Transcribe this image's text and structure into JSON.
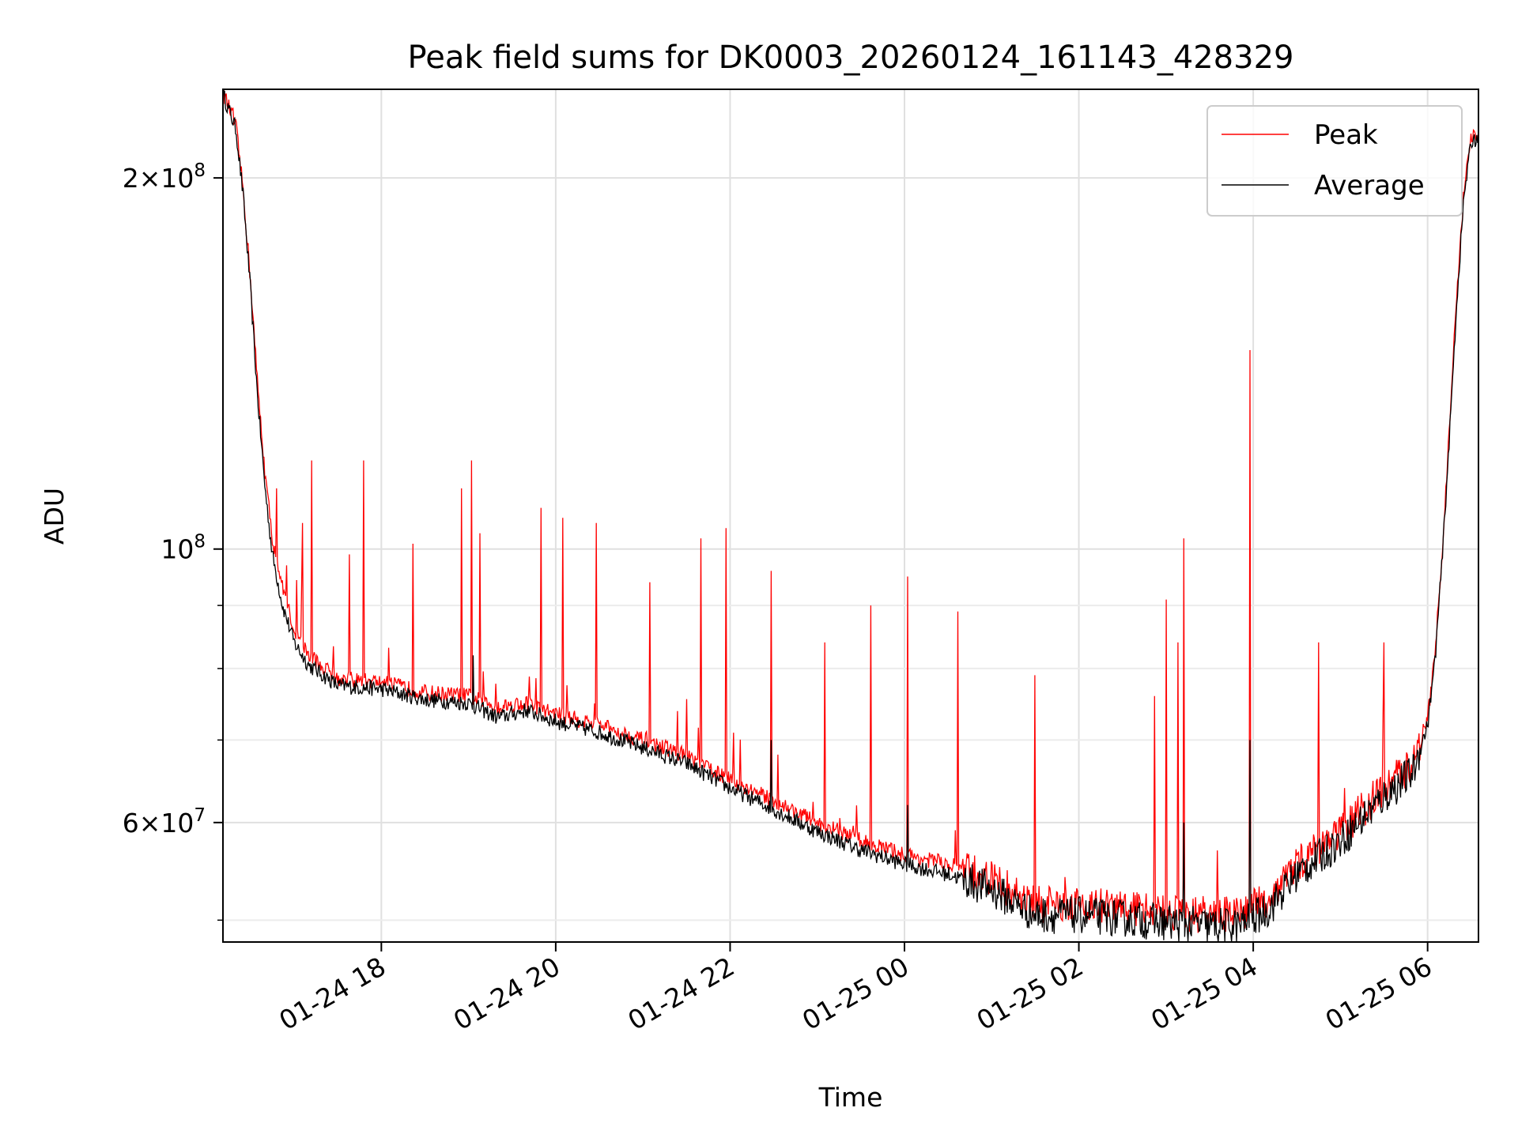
{
  "chart_data": {
    "type": "line",
    "title": "Peak field sums for DK0003_20260124_161143_428329",
    "xlabel": "Time",
    "ylabel": "ADU",
    "xlim": [
      "2026-01-24 16:11",
      "2026-01-25 06:35"
    ],
    "ylim": [
      48000000,
      236000000
    ],
    "yscale": "log",
    "grid": true,
    "legend_position": "top-right",
    "x_ticks": [
      {
        "t": "2026-01-24 18:00",
        "label": "01-24 18"
      },
      {
        "t": "2026-01-24 20:00",
        "label": "01-24 20"
      },
      {
        "t": "2026-01-24 22:00",
        "label": "01-24 22"
      },
      {
        "t": "2026-01-25 00:00",
        "label": "01-25 00"
      },
      {
        "t": "2026-01-25 02:00",
        "label": "01-25 02"
      },
      {
        "t": "2026-01-25 04:00",
        "label": "01-25 04"
      },
      {
        "t": "2026-01-25 06:00",
        "label": "01-25 06"
      }
    ],
    "y_major_ticks": [
      {
        "value": 60000000,
        "base": "6",
        "exp": "7"
      },
      {
        "value": 100000000,
        "base": "10",
        "exp": "8"
      },
      {
        "value": 200000000,
        "base": "2",
        "exp": "8"
      }
    ],
    "y_minor_ticks": [
      50000000,
      70000000,
      80000000,
      90000000
    ],
    "series": [
      {
        "name": "Peak",
        "color": "#ff0000",
        "baseline": [
          [
            "2026-01-24 16:11",
            235000000
          ],
          [
            "2026-01-24 16:20",
            220000000
          ],
          [
            "2026-01-24 16:25",
            195000000
          ],
          [
            "2026-01-24 16:30",
            165000000
          ],
          [
            "2026-01-24 16:35",
            135000000
          ],
          [
            "2026-01-24 16:40",
            115000000
          ],
          [
            "2026-01-24 16:45",
            102000000
          ],
          [
            "2026-01-24 16:52",
            93000000
          ],
          [
            "2026-01-24 17:00",
            86000000
          ],
          [
            "2026-01-24 17:10",
            82000000
          ],
          [
            "2026-01-24 17:30",
            78500000
          ],
          [
            "2026-01-24 18:00",
            78000000
          ],
          [
            "2026-01-24 18:30",
            76500000
          ],
          [
            "2026-01-24 19:00",
            76000000
          ],
          [
            "2026-01-24 19:20",
            74500000
          ],
          [
            "2026-01-24 19:40",
            75000000
          ],
          [
            "2026-01-24 20:00",
            73500000
          ],
          [
            "2026-01-24 20:30",
            72000000
          ],
          [
            "2026-01-24 21:00",
            70000000
          ],
          [
            "2026-01-24 21:30",
            68000000
          ],
          [
            "2026-01-24 22:00",
            65000000
          ],
          [
            "2026-01-24 22:30",
            62500000
          ],
          [
            "2026-01-24 23:00",
            60000000
          ],
          [
            "2026-01-24 23:30",
            58000000
          ],
          [
            "2026-01-25 00:00",
            56500000
          ],
          [
            "2026-01-25 00:30",
            55500000
          ],
          [
            "2026-01-25 01:00",
            54000000
          ],
          [
            "2026-01-25 01:30",
            51500000
          ],
          [
            "2026-01-25 02:00",
            51500000
          ],
          [
            "2026-01-25 02:30",
            51200000
          ],
          [
            "2026-01-25 03:00",
            50800000
          ],
          [
            "2026-01-25 03:30",
            50500000
          ],
          [
            "2026-01-25 03:50",
            50500000
          ],
          [
            "2026-01-25 04:10",
            52000000
          ],
          [
            "2026-01-25 04:30",
            55500000
          ],
          [
            "2026-01-25 05:00",
            59000000
          ],
          [
            "2026-01-25 05:30",
            64000000
          ],
          [
            "2026-01-25 05:50",
            67000000
          ],
          [
            "2026-01-25 06:00",
            73000000
          ],
          [
            "2026-01-25 06:05",
            82000000
          ],
          [
            "2026-01-25 06:10",
            100000000
          ],
          [
            "2026-01-25 06:15",
            125000000
          ],
          [
            "2026-01-25 06:20",
            160000000
          ],
          [
            "2026-01-25 06:25",
            195000000
          ],
          [
            "2026-01-25 06:30",
            215000000
          ],
          [
            "2026-01-25 06:35",
            217000000
          ]
        ],
        "spikes": [
          [
            "2026-01-24 16:18",
            228000000
          ],
          [
            "2026-01-24 16:48",
            112000000
          ],
          [
            "2026-01-24 16:55",
            97000000
          ],
          [
            "2026-01-24 17:06",
            105000000
          ],
          [
            "2026-01-24 17:12",
            118000000
          ],
          [
            "2026-01-24 17:38",
            99000000
          ],
          [
            "2026-01-24 17:48",
            118000000
          ],
          [
            "2026-01-24 18:22",
            101000000
          ],
          [
            "2026-01-24 18:55",
            112000000
          ],
          [
            "2026-01-24 19:02",
            118000000
          ],
          [
            "2026-01-24 19:08",
            103000000
          ],
          [
            "2026-01-24 19:50",
            108000000
          ],
          [
            "2026-01-24 20:05",
            106000000
          ],
          [
            "2026-01-24 20:28",
            105000000
          ],
          [
            "2026-01-24 21:05",
            94000000
          ],
          [
            "2026-01-24 21:40",
            102000000
          ],
          [
            "2026-01-24 21:57",
            104000000
          ],
          [
            "2026-01-24 22:28",
            96000000
          ],
          [
            "2026-01-24 23:05",
            84000000
          ],
          [
            "2026-01-24 23:37",
            90000000
          ],
          [
            "2026-01-25 00:02",
            95000000
          ],
          [
            "2026-01-25 00:37",
            89000000
          ],
          [
            "2026-01-25 01:30",
            79000000
          ],
          [
            "2026-01-25 02:52",
            76000000
          ],
          [
            "2026-01-25 03:00",
            91000000
          ],
          [
            "2026-01-25 03:08",
            84000000
          ],
          [
            "2026-01-25 03:12",
            102000000
          ],
          [
            "2026-01-25 03:58",
            145000000
          ],
          [
            "2026-01-25 04:45",
            84000000
          ],
          [
            "2026-01-25 05:30",
            84000000
          ]
        ]
      },
      {
        "name": "Average",
        "color": "#000000",
        "baseline": [
          [
            "2026-01-24 16:11",
            234000000
          ],
          [
            "2026-01-24 16:20",
            219000000
          ],
          [
            "2026-01-24 16:25",
            193000000
          ],
          [
            "2026-01-24 16:30",
            162000000
          ],
          [
            "2026-01-24 16:35",
            132000000
          ],
          [
            "2026-01-24 16:40",
            112000000
          ],
          [
            "2026-01-24 16:45",
            99000000
          ],
          [
            "2026-01-24 16:52",
            90000000
          ],
          [
            "2026-01-24 17:00",
            84000000
          ],
          [
            "2026-01-24 17:10",
            80500000
          ],
          [
            "2026-01-24 17:30",
            77500000
          ],
          [
            "2026-01-24 18:00",
            77000000
          ],
          [
            "2026-01-24 18:30",
            75500000
          ],
          [
            "2026-01-24 19:00",
            75000000
          ],
          [
            "2026-01-24 19:20",
            73000000
          ],
          [
            "2026-01-24 19:40",
            74000000
          ],
          [
            "2026-01-24 20:00",
            72500000
          ],
          [
            "2026-01-24 20:30",
            71000000
          ],
          [
            "2026-01-24 21:00",
            69000000
          ],
          [
            "2026-01-24 21:30",
            67000000
          ],
          [
            "2026-01-24 22:00",
            64000000
          ],
          [
            "2026-01-24 22:30",
            61500000
          ],
          [
            "2026-01-24 23:00",
            59000000
          ],
          [
            "2026-01-24 23:30",
            57000000
          ],
          [
            "2026-01-25 00:00",
            55500000
          ],
          [
            "2026-01-25 00:30",
            54500000
          ],
          [
            "2026-01-25 01:00",
            53000000
          ],
          [
            "2026-01-25 01:30",
            50500000
          ],
          [
            "2026-01-25 02:00",
            50500000
          ],
          [
            "2026-01-25 02:30",
            50200000
          ],
          [
            "2026-01-25 03:00",
            49800000
          ],
          [
            "2026-01-25 03:30",
            49500000
          ],
          [
            "2026-01-25 03:50",
            49500000
          ],
          [
            "2026-01-25 04:10",
            51000000
          ],
          [
            "2026-01-25 04:30",
            54500000
          ],
          [
            "2026-01-25 05:00",
            58000000
          ],
          [
            "2026-01-25 05:30",
            63000000
          ],
          [
            "2026-01-25 05:50",
            66000000
          ],
          [
            "2026-01-25 06:00",
            72000000
          ],
          [
            "2026-01-25 06:05",
            81000000
          ],
          [
            "2026-01-25 06:10",
            98000000
          ],
          [
            "2026-01-25 06:15",
            123000000
          ],
          [
            "2026-01-25 06:20",
            158000000
          ],
          [
            "2026-01-25 06:25",
            193000000
          ],
          [
            "2026-01-25 06:30",
            214000000
          ],
          [
            "2026-01-25 06:35",
            216000000
          ]
        ],
        "spikes": [
          [
            "2026-01-24 19:03",
            82000000
          ],
          [
            "2026-01-24 22:28",
            70000000
          ],
          [
            "2026-01-25 00:02",
            62000000
          ],
          [
            "2026-01-25 03:58",
            70000000
          ],
          [
            "2026-01-25 03:12",
            60000000
          ]
        ]
      }
    ]
  }
}
